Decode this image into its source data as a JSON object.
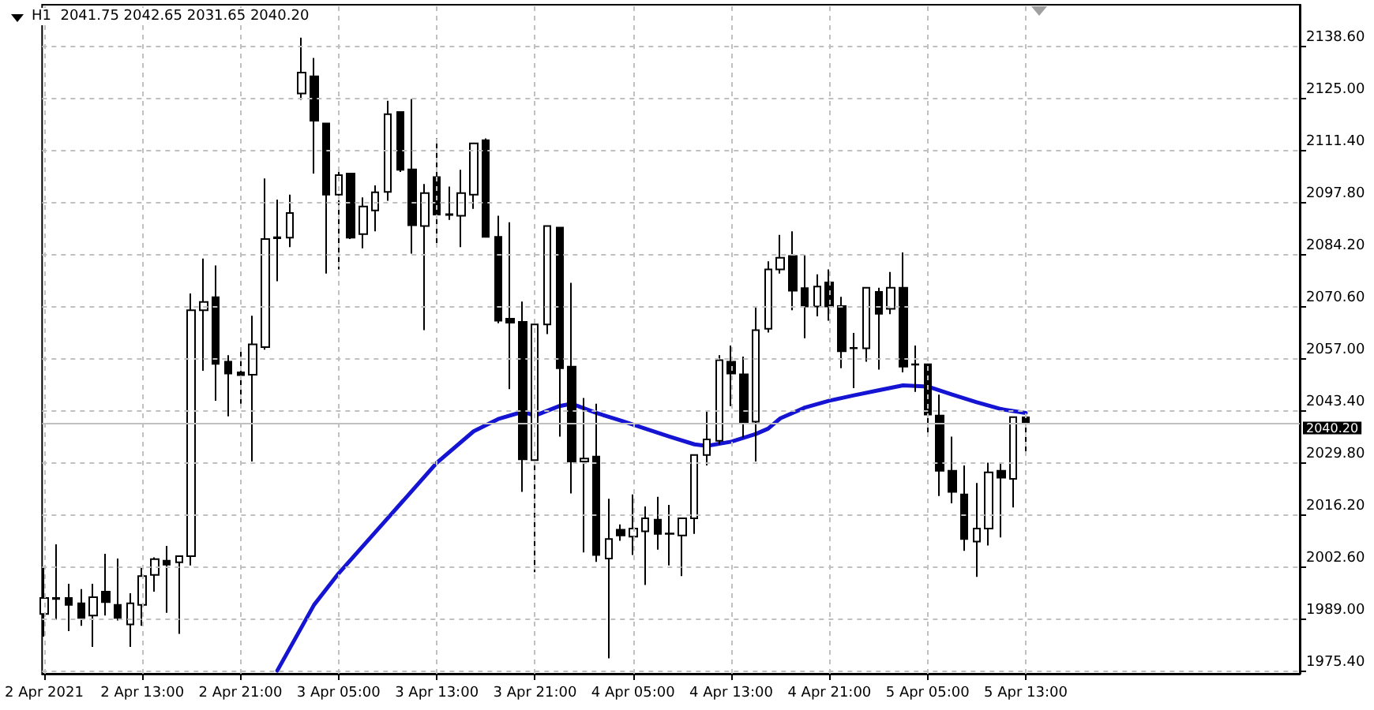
{
  "chart_data": {
    "type": "candlestick",
    "title": "H1  2041.75 2042.65 2031.65 2040.20",
    "color": "#000000",
    "grid": true,
    "x": [
      "2021-04-02T05:00",
      "2021-04-02T06:00",
      "2021-04-02T07:00",
      "2021-04-02T08:00",
      "2021-04-02T09:00",
      "2021-04-02T10:00",
      "2021-04-02T11:00",
      "2021-04-02T12:00",
      "2021-04-02T13:00",
      "2021-04-02T14:00",
      "2021-04-02T15:00",
      "2021-04-02T16:00",
      "2021-04-02T17:00",
      "2021-04-02T18:00",
      "2021-04-02T19:00",
      "2021-04-02T20:00",
      "2021-04-02T21:00",
      "2021-04-02T22:00",
      "2021-04-02T23:00",
      "2021-04-03T00:00",
      "2021-04-03T01:00",
      "2021-04-03T02:00",
      "2021-04-03T03:00",
      "2021-04-03T04:00",
      "2021-04-03T05:00",
      "2021-04-03T06:00",
      "2021-04-03T07:00",
      "2021-04-03T08:00",
      "2021-04-03T09:00",
      "2021-04-03T10:00",
      "2021-04-03T11:00",
      "2021-04-03T12:00",
      "2021-04-03T13:00",
      "2021-04-03T14:00",
      "2021-04-03T15:00",
      "2021-04-03T16:00",
      "2021-04-03T17:00",
      "2021-04-03T18:00",
      "2021-04-03T19:00",
      "2021-04-03T20:00",
      "2021-04-03T21:00",
      "2021-04-03T22:00",
      "2021-04-03T23:00",
      "2021-04-04T00:00",
      "2021-04-04T01:00",
      "2021-04-04T02:00",
      "2021-04-04T03:00",
      "2021-04-04T04:00",
      "2021-04-04T05:00",
      "2021-04-04T06:00",
      "2021-04-04T07:00",
      "2021-04-04T08:00",
      "2021-04-04T09:00",
      "2021-04-04T10:00",
      "2021-04-04T11:00",
      "2021-04-04T12:00",
      "2021-04-04T13:00",
      "2021-04-04T14:00",
      "2021-04-04T15:00",
      "2021-04-04T16:00",
      "2021-04-04T17:00",
      "2021-04-04T18:00",
      "2021-04-04T19:00",
      "2021-04-04T20:00",
      "2021-04-04T21:00",
      "2021-04-04T22:00",
      "2021-04-04T23:00",
      "2021-04-05T00:00",
      "2021-04-05T01:00",
      "2021-04-05T02:00",
      "2021-04-05T03:00",
      "2021-04-05T04:00",
      "2021-04-05T05:00",
      "2021-04-05T06:00",
      "2021-04-05T07:00",
      "2021-04-05T08:00",
      "2021-04-05T09:00",
      "2021-04-05T10:00",
      "2021-04-05T11:00",
      "2021-04-05T12:00",
      "2021-04-05T13:00"
    ],
    "ohlc": [
      [
        1990.4,
        2002.4,
        1984.5,
        1994.6
      ],
      [
        1994.3,
        2008.6,
        1988.9,
        1994.6
      ],
      [
        1994.6,
        1998.3,
        1985.9,
        1992.8
      ],
      [
        1993.2,
        1996.9,
        1987.3,
        1989.4
      ],
      [
        1990.0,
        1998.3,
        1981.8,
        1994.8
      ],
      [
        1996.2,
        2006.1,
        1990.0,
        1993.5
      ],
      [
        1992.8,
        2004.9,
        1988.7,
        1989.4
      ],
      [
        1987.7,
        1995.8,
        1981.8,
        1993.2
      ],
      [
        1992.8,
        2002.4,
        1987.3,
        2000.3
      ],
      [
        2000.6,
        2005.2,
        1996.2,
        2004.7
      ],
      [
        2004.3,
        2008.2,
        1990.7,
        2003.3
      ],
      [
        2003.9,
        2005.6,
        1985.2,
        2005.5
      ],
      [
        2005.5,
        2074.1,
        2003.1,
        2069.7
      ],
      [
        2069.7,
        2083.2,
        2053.9,
        2071.9
      ],
      [
        2073.1,
        2081.4,
        2046.1,
        2055.7
      ],
      [
        2056.3,
        2058.0,
        2042.0,
        2053.2
      ],
      [
        2053.5,
        2060.1,
        2045.3,
        2052.8
      ],
      [
        2052.9,
        2068.3,
        2030.2,
        2060.8
      ],
      [
        2060.1,
        2104.1,
        2059.4,
        2088.3
      ],
      [
        2088.8,
        2098.6,
        2077.3,
        2088.5
      ],
      [
        2088.7,
        2099.9,
        2086.2,
        2095.1
      ],
      [
        2126.3,
        2140.9,
        2124.7,
        2131.8
      ],
      [
        2130.8,
        2135.6,
        2105.4,
        2119.2
      ],
      [
        2118.5,
        2118.5,
        2079.3,
        2099.9
      ],
      [
        2099.9,
        2107.1,
        2080.4,
        2105.0
      ],
      [
        2105.4,
        2105.4,
        2088.3,
        2088.7
      ],
      [
        2089.6,
        2099.2,
        2085.9,
        2096.8
      ],
      [
        2095.8,
        2102.3,
        2090.3,
        2100.5
      ],
      [
        2100.6,
        2124.4,
        2098.3,
        2120.9
      ],
      [
        2121.5,
        2121.5,
        2105.8,
        2106.4
      ],
      [
        2106.5,
        2124.9,
        2084.5,
        2091.9
      ],
      [
        2091.7,
        2102.7,
        2064.5,
        2100.3
      ],
      [
        2104.5,
        2114.6,
        2086.2,
        2094.7
      ],
      [
        2094.8,
        2102.0,
        2093.3,
        2094.6
      ],
      [
        2094.4,
        2106.4,
        2086.2,
        2100.3
      ],
      [
        2099.9,
        2113.3,
        2096.2,
        2113.3
      ],
      [
        2114.1,
        2114.6,
        2088.7,
        2088.9
      ],
      [
        2088.9,
        2094.4,
        2066.3,
        2067.0
      ],
      [
        2067.5,
        2092.7,
        2049.1,
        2066.5
      ],
      [
        2066.7,
        2072.0,
        2022.3,
        2030.8
      ],
      [
        2030.6,
        2066.0,
        2001.3,
        2066.0
      ],
      [
        2066.0,
        2091.7,
        2063.5,
        2091.7
      ],
      [
        2091.3,
        2091.3,
        2036.7,
        2054.6
      ],
      [
        2055.0,
        2076.9,
        2021.9,
        2030.2
      ],
      [
        2030.2,
        2046.8,
        2006.5,
        2031.0
      ],
      [
        2031.5,
        2045.3,
        2004.0,
        2005.8
      ],
      [
        2004.9,
        2020.5,
        1978.8,
        2010.0
      ],
      [
        2012.4,
        2013.8,
        2009.5,
        2010.9
      ],
      [
        2010.6,
        2021.6,
        2005.8,
        2012.7
      ],
      [
        2012.0,
        2018.5,
        1998.0,
        2015.4
      ],
      [
        2015.0,
        2021.0,
        2007.2,
        2011.3
      ],
      [
        2011.4,
        2018.9,
        2003.1,
        2011.3
      ],
      [
        2010.9,
        2015.4,
        2000.3,
        2015.4
      ],
      [
        2015.4,
        2031.9,
        2011.3,
        2031.9
      ],
      [
        2031.9,
        2043.6,
        2029.2,
        2036.0
      ],
      [
        2035.6,
        2058.0,
        2034.7,
        2056.7
      ],
      [
        2056.3,
        2060.5,
        2044.7,
        2053.2
      ],
      [
        2053.0,
        2057.6,
        2036.5,
        2040.2
      ],
      [
        2040.6,
        2070.4,
        2030.2,
        2064.5
      ],
      [
        2064.9,
        2082.5,
        2063.9,
        2080.4
      ],
      [
        2080.4,
        2089.4,
        2079.3,
        2083.4
      ],
      [
        2083.9,
        2090.3,
        2069.7,
        2074.8
      ],
      [
        2075.5,
        2084.1,
        2062.4,
        2070.7
      ],
      [
        2070.7,
        2079.1,
        2068.1,
        2075.9
      ],
      [
        2077.0,
        2080.4,
        2067.0,
        2070.7
      ],
      [
        2070.8,
        2073.2,
        2054.6,
        2059.0
      ],
      [
        2059.9,
        2063.8,
        2049.4,
        2059.8
      ],
      [
        2059.8,
        2075.6,
        2056.3,
        2075.6
      ],
      [
        2074.5,
        2075.6,
        2054.2,
        2068.8
      ],
      [
        2070.1,
        2079.7,
        2068.7,
        2075.6
      ],
      [
        2075.6,
        2084.8,
        2053.5,
        2055.0
      ],
      [
        2055.6,
        2060.5,
        2048.4,
        2055.5
      ],
      [
        2055.6,
        2055.6,
        2037.8,
        2042.5
      ],
      [
        2042.2,
        2047.7,
        2021.2,
        2027.8
      ],
      [
        2027.8,
        2036.7,
        2019.3,
        2022.3
      ],
      [
        2021.6,
        2029.2,
        2006.9,
        2010.0
      ],
      [
        2009.3,
        2024.6,
        2000.1,
        2012.7
      ],
      [
        2012.7,
        2029.9,
        2008.3,
        2027.4
      ],
      [
        2027.8,
        2029.9,
        2010.4,
        2026.0
      ],
      [
        2025.7,
        2041.8,
        2018.2,
        2041.8
      ],
      [
        2041.75,
        2042.65,
        2031.65,
        2040.2
      ]
    ],
    "series": [
      {
        "type": "line",
        "color": "#1414d2",
        "line_style": "solid",
        "x": [
          "2021-04-03T00:00",
          "2021-04-03T03:00",
          "2021-04-03T05:00",
          "2021-04-03T09:00",
          "2021-04-03T13:00",
          "2021-04-03T16:00",
          "2021-04-03T18:00",
          "2021-04-03T20:00",
          "2021-04-03T21:00",
          "2021-04-03T23:00",
          "2021-04-04T00:00",
          "2021-04-04T02:00",
          "2021-04-04T04:00",
          "2021-04-04T06:00",
          "2021-04-04T08:00",
          "2021-04-04T10:00",
          "2021-04-04T11:00",
          "2021-04-04T13:00",
          "2021-04-04T15:00",
          "2021-04-04T16:00",
          "2021-04-04T17:00",
          "2021-04-04T19:00",
          "2021-04-04T21:00",
          "2021-04-04T23:00",
          "2021-04-05T01:00",
          "2021-04-05T03:00",
          "2021-04-05T05:00",
          "2021-04-05T07:00",
          "2021-04-05T09:00",
          "2021-04-05T11:00",
          "2021-04-05T13:00"
        ],
        "values": [
          1975.6,
          1992.8,
          2001.0,
          2015.4,
          2029.9,
          2038.1,
          2041.3,
          2043.2,
          2042.2,
          2044.7,
          2045.3,
          2042.9,
          2040.9,
          2038.8,
          2036.7,
          2034.7,
          2034.3,
          2035.4,
          2037.4,
          2038.8,
          2041.5,
          2044.3,
          2046.1,
          2047.5,
          2048.8,
          2050.1,
          2049.8,
          2047.7,
          2045.7,
          2043.9,
          2042.9
        ]
      }
    ],
    "xlim": [
      "2021-04-02T04:50",
      "2021-04-06T11:20"
    ],
    "xticks": [
      {
        "value": "2021-04-02T05:00",
        "label": "2 Apr 2021"
      },
      {
        "value": "2021-04-02T13:00",
        "label": "2 Apr 13:00"
      },
      {
        "value": "2021-04-02T21:00",
        "label": "2 Apr 21:00"
      },
      {
        "value": "2021-04-03T05:00",
        "label": "3 Apr 05:00"
      },
      {
        "value": "2021-04-03T13:00",
        "label": "3 Apr 13:00"
      },
      {
        "value": "2021-04-03T21:00",
        "label": "3 Apr 21:00"
      },
      {
        "value": "2021-04-04T05:00",
        "label": "4 Apr 05:00"
      },
      {
        "value": "2021-04-04T13:00",
        "label": "4 Apr 13:00"
      },
      {
        "value": "2021-04-04T21:00",
        "label": "4 Apr 21:00"
      },
      {
        "value": "2021-04-05T05:00",
        "label": "5 Apr 05:00"
      },
      {
        "value": "2021-04-05T13:00",
        "label": "5 Apr 13:00"
      }
    ],
    "ylim": [
      1974.8,
      2149.5
    ],
    "yticks": [
      {
        "value": 1975.4,
        "label": "1975.40"
      },
      {
        "value": 1989,
        "label": "1989.00"
      },
      {
        "value": 2002.6,
        "label": "2002.60"
      },
      {
        "value": 2016.2,
        "label": "2016.20"
      },
      {
        "value": 2029.8,
        "label": "2029.80"
      },
      {
        "value": 2043.4,
        "label": "2043.40"
      },
      {
        "value": 2057,
        "label": "2057.00"
      },
      {
        "value": 2070.6,
        "label": "2070.60"
      },
      {
        "value": 2084.2,
        "label": "2084.20"
      },
      {
        "value": 2097.8,
        "label": "2097.80"
      },
      {
        "value": 2111.4,
        "label": "2111.40"
      },
      {
        "value": 2125,
        "label": "2125.00"
      },
      {
        "value": 2138.6,
        "label": "2138.60"
      }
    ],
    "ref_lines": [
      {
        "axis": "y",
        "value": 2040.2,
        "label": "2040.20",
        "color": "#c0c0c0"
      }
    ]
  }
}
